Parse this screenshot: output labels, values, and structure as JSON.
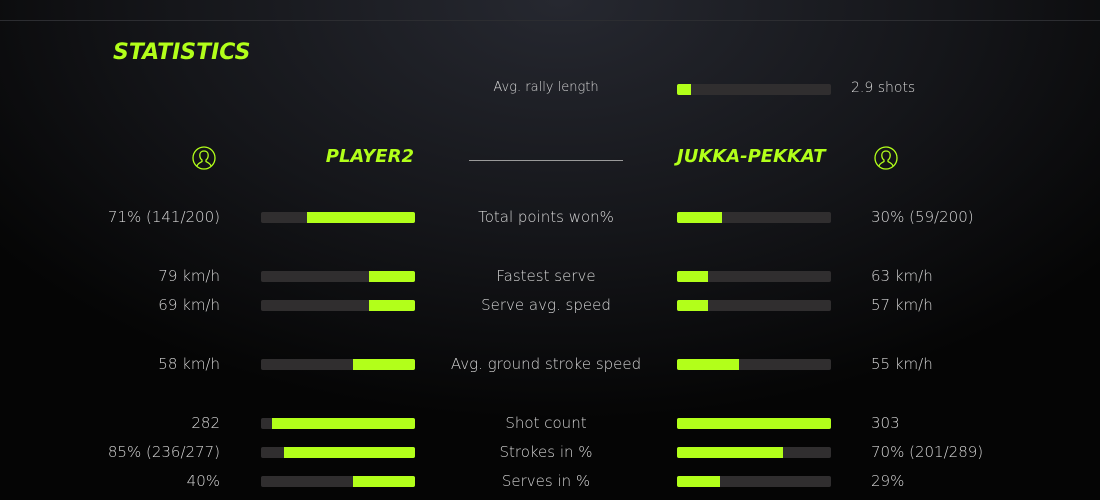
{
  "accent": "#b2ff1a",
  "title": "STATISTICS",
  "rally": {
    "label": "Avg. rally length",
    "value": "2.9 shots",
    "fill": 0.09
  },
  "players": {
    "left": "PLAYER2",
    "right": "JUKKA-PEKKAT",
    "icon": "user-icon"
  },
  "stats": [
    {
      "label": "Total points won%",
      "left": "71% (141/200)",
      "right": "30% (59/200)",
      "left_fill": 0.7,
      "right_fill": 0.29
    },
    {
      "label": "Fastest serve",
      "left": "79 km/h",
      "right": "63 km/h",
      "left_fill": 0.3,
      "right_fill": 0.2
    },
    {
      "label": "Serve avg. speed",
      "left": "69 km/h",
      "right": "57 km/h",
      "left_fill": 0.3,
      "right_fill": 0.2
    },
    {
      "label": "Avg. ground stroke speed",
      "left": "58 km/h",
      "right": "55 km/h",
      "left_fill": 0.4,
      "right_fill": 0.4
    },
    {
      "label": "Shot count",
      "left": "282",
      "right": "303",
      "left_fill": 0.93,
      "right_fill": 1.0
    },
    {
      "label": "Strokes in %",
      "left": "85% (236/277)",
      "right": "70% (201/289)",
      "left_fill": 0.85,
      "right_fill": 0.69
    },
    {
      "label": "Serves in %",
      "left": "40%",
      "right": "29%",
      "left_fill": 0.4,
      "right_fill": 0.28
    }
  ]
}
